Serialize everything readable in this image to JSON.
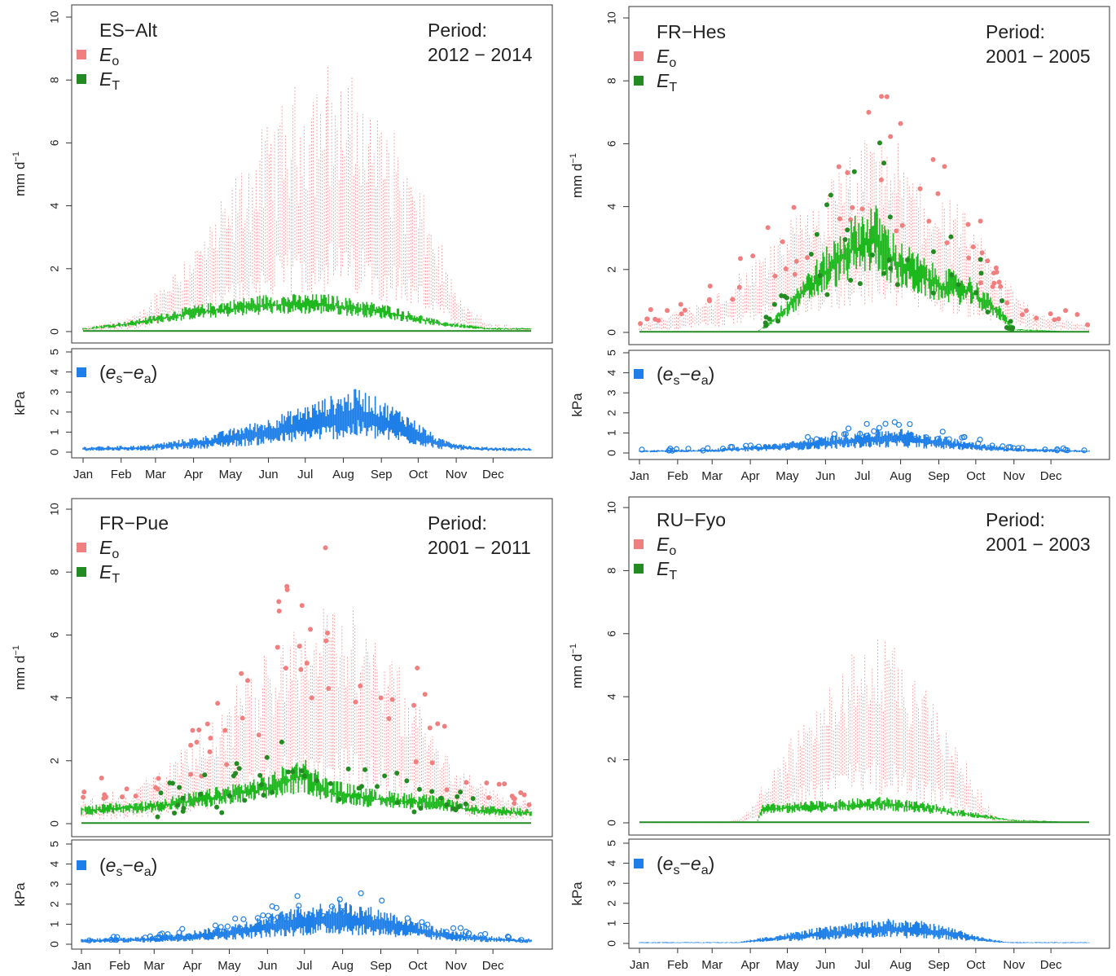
{
  "figure": {
    "months": [
      "Jan",
      "Feb",
      "Mar",
      "Apr",
      "May",
      "Jun",
      "Jul",
      "Aug",
      "Sep",
      "Oct",
      "Nov",
      "Dec"
    ],
    "top_ylabel_main": "mm d",
    "top_ylabel_sup": "−1",
    "bottom_ylabel": "kPa",
    "legend": {
      "eo_base": "E",
      "eo_sub": "o",
      "et_base": "E",
      "et_sub": "T",
      "vpd_open": "(",
      "vpd_es_base": "e",
      "vpd_es_sub": "s",
      "vpd_minus": "−",
      "vpd_ea_base": "e",
      "vpd_ea_sub": "a",
      "vpd_close": ")"
    },
    "period_label": "Period:",
    "colors": {
      "eo": "#F08080",
      "et": "#228B22",
      "et_line": "#1DB81D",
      "vpd": "#1E7FE8"
    }
  },
  "chart_data": [
    {
      "type": "line",
      "site": "ES−Alt",
      "period": "2012 − 2014",
      "top_panel": {
        "ylabel": "mm d−1",
        "ylim": [
          0,
          10
        ],
        "yticks": [
          0,
          2,
          4,
          6,
          8,
          10
        ],
        "x": "day of year (monthly ticks)",
        "series": [
          {
            "name": "Eo",
            "envelope_points": [
              [
                0,
                0.1
              ],
              [
                45,
                0.4
              ],
              [
                75,
                1.5
              ],
              [
                105,
                2.5
              ],
              [
                135,
                4.0
              ],
              [
                165,
                5.2
              ],
              [
                195,
                6.0
              ],
              [
                225,
                5.5
              ],
              [
                255,
                4.5
              ],
              [
                285,
                2.5
              ],
              [
                305,
                0.8
              ],
              [
                330,
                0.2
              ],
              [
                365,
                0.1
              ]
            ]
          },
          {
            "name": "ET",
            "envelope_points": [
              [
                0,
                0.1
              ],
              [
                40,
                0.3
              ],
              [
                90,
                0.7
              ],
              [
                150,
                1.0
              ],
              [
                200,
                1.0
              ],
              [
                250,
                0.7
              ],
              [
                290,
                0.3
              ],
              [
                330,
                0.1
              ],
              [
                365,
                0.1
              ]
            ]
          }
        ]
      },
      "bottom_panel": {
        "ylabel": "kPa",
        "ylim": [
          0,
          5
        ],
        "yticks": [
          0,
          1,
          2,
          3,
          4,
          5
        ],
        "series": [
          {
            "name": "(es−ea)",
            "envelope_points": [
              [
                0,
                0.2
              ],
              [
                50,
                0.25
              ],
              [
                100,
                0.6
              ],
              [
                150,
                1.2
              ],
              [
                200,
                2.0
              ],
              [
                225,
                2.3
              ],
              [
                260,
                1.5
              ],
              [
                290,
                0.5
              ],
              [
                320,
                0.2
              ],
              [
                365,
                0.15
              ]
            ]
          }
        ]
      }
    },
    {
      "type": "line",
      "site": "FR−Hes",
      "period": "2001 − 2005",
      "top_panel": {
        "ylabel": "mm d−1",
        "ylim": [
          0,
          10
        ],
        "yticks": [
          0,
          2,
          4,
          6,
          8,
          10
        ],
        "series": [
          {
            "name": "Eo",
            "envelope_points": [
              [
                0,
                0.2
              ],
              [
                60,
                0.8
              ],
              [
                100,
                1.8
              ],
              [
                140,
                3.0
              ],
              [
                180,
                4.2
              ],
              [
                200,
                4.5
              ],
              [
                230,
                3.5
              ],
              [
                260,
                2.8
              ],
              [
                290,
                1.5
              ],
              [
                320,
                0.5
              ],
              [
                365,
                0.2
              ]
            ]
          },
          {
            "name": "ET",
            "envelope_points": [
              [
                0,
                0
              ],
              [
                95,
                0
              ],
              [
                110,
                0.5
              ],
              [
                140,
                1.8
              ],
              [
                170,
                3.0
              ],
              [
                190,
                3.5
              ],
              [
                210,
                2.5
              ],
              [
                240,
                1.8
              ],
              [
                270,
                1.5
              ],
              [
                290,
                0.8
              ],
              [
                305,
                0.1
              ],
              [
                365,
                0
              ]
            ]
          }
        ]
      },
      "bottom_panel": {
        "ylabel": "kPa",
        "ylim": [
          0,
          5
        ],
        "yticks": [
          0,
          1,
          2,
          3,
          4,
          5
        ],
        "series": [
          {
            "name": "(es−ea)",
            "envelope_points": [
              [
                0,
                0.1
              ],
              [
                60,
                0.15
              ],
              [
                120,
                0.4
              ],
              [
                180,
                0.8
              ],
              [
                210,
                0.9
              ],
              [
                260,
                0.5
              ],
              [
                300,
                0.2
              ],
              [
                365,
                0.1
              ]
            ]
          }
        ]
      }
    },
    {
      "type": "line",
      "site": "FR−Pue",
      "period": "2001 − 2011",
      "top_panel": {
        "ylabel": "mm d−1",
        "ylim": [
          0,
          10
        ],
        "yticks": [
          0,
          2,
          4,
          6,
          8,
          10
        ],
        "series": [
          {
            "name": "Eo",
            "envelope_points": [
              [
                0,
                0.6
              ],
              [
                40,
                0.8
              ],
              [
                90,
                1.8
              ],
              [
                140,
                3.5
              ],
              [
                180,
                5.0
              ],
              [
                210,
                5.2
              ],
              [
                240,
                4.5
              ],
              [
                270,
                3.0
              ],
              [
                300,
                1.5
              ],
              [
                330,
                0.8
              ],
              [
                365,
                0.6
              ]
            ]
          },
          {
            "name": "ET",
            "envelope_points": [
              [
                0,
                0.5
              ],
              [
                50,
                0.6
              ],
              [
                100,
                0.9
              ],
              [
                150,
                1.3
              ],
              [
                180,
                1.8
              ],
              [
                200,
                1.2
              ],
              [
                240,
                0.9
              ],
              [
                280,
                0.8
              ],
              [
                320,
                0.5
              ],
              [
                365,
                0.4
              ]
            ]
          }
        ]
      },
      "bottom_panel": {
        "ylabel": "kPa",
        "ylim": [
          0,
          5
        ],
        "yticks": [
          0,
          1,
          2,
          3,
          4,
          5
        ],
        "series": [
          {
            "name": "(es−ea)",
            "envelope_points": [
              [
                0,
                0.2
              ],
              [
                60,
                0.3
              ],
              [
                120,
                0.7
              ],
              [
                180,
                1.4
              ],
              [
                210,
                1.6
              ],
              [
                250,
                1.2
              ],
              [
                290,
                0.6
              ],
              [
                330,
                0.3
              ],
              [
                365,
                0.2
              ]
            ]
          }
        ]
      }
    },
    {
      "type": "line",
      "site": "RU−Fyo",
      "period": "2001 − 2003",
      "top_panel": {
        "ylabel": "mm d−1",
        "ylim": [
          0,
          10
        ],
        "yticks": [
          0,
          2,
          4,
          6,
          8,
          10
        ],
        "series": [
          {
            "name": "Eo",
            "envelope_points": [
              [
                0,
                0
              ],
              [
                70,
                0
              ],
              [
                85,
                0.2
              ],
              [
                110,
                1.2
              ],
              [
                140,
                2.8
              ],
              [
                170,
                3.8
              ],
              [
                195,
                4.2
              ],
              [
                220,
                3.5
              ],
              [
                250,
                2.2
              ],
              [
                275,
                0.8
              ],
              [
                290,
                0.1
              ],
              [
                365,
                0
              ]
            ]
          },
          {
            "name": "ET",
            "envelope_points": [
              [
                0,
                0
              ],
              [
                95,
                0
              ],
              [
                100,
                0.5
              ],
              [
                150,
                0.6
              ],
              [
                200,
                0.7
              ],
              [
                240,
                0.5
              ],
              [
                270,
                0.3
              ],
              [
                300,
                0.1
              ],
              [
                365,
                0
              ]
            ]
          }
        ]
      },
      "bottom_panel": {
        "ylabel": "kPa",
        "ylim": [
          0,
          5
        ],
        "yticks": [
          0,
          1,
          2,
          3,
          4,
          5
        ],
        "series": [
          {
            "name": "(es−ea)",
            "envelope_points": [
              [
                0,
                0.05
              ],
              [
                80,
                0.05
              ],
              [
                110,
                0.3
              ],
              [
                150,
                0.6
              ],
              [
                200,
                0.9
              ],
              [
                230,
                0.8
              ],
              [
                260,
                0.5
              ],
              [
                280,
                0.2
              ],
              [
                300,
                0.05
              ],
              [
                365,
                0.05
              ]
            ]
          }
        ]
      }
    }
  ]
}
